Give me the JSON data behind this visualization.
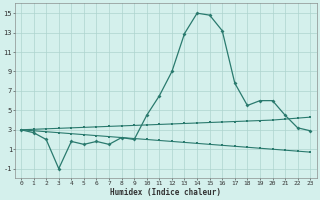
{
  "xlabel": "Humidex (Indice chaleur)",
  "x": [
    0,
    1,
    2,
    3,
    4,
    5,
    6,
    7,
    8,
    9,
    10,
    11,
    12,
    13,
    14,
    15,
    16,
    17,
    18,
    19,
    20,
    21,
    22,
    23
  ],
  "y_main": [
    3,
    2.7,
    2.0,
    -1.0,
    1.8,
    1.5,
    1.8,
    1.5,
    2.2,
    2.0,
    4.5,
    6.5,
    9.0,
    12.9,
    15.0,
    14.8,
    13.2,
    7.8,
    5.5,
    6.0,
    6.0,
    4.5,
    3.2,
    2.9
  ],
  "y_upper": [
    3.0,
    3.05,
    3.1,
    3.15,
    3.2,
    3.25,
    3.3,
    3.35,
    3.4,
    3.45,
    3.5,
    3.55,
    3.6,
    3.65,
    3.7,
    3.75,
    3.8,
    3.85,
    3.9,
    3.95,
    4.0,
    4.1,
    4.2,
    4.3
  ],
  "y_lower": [
    3.0,
    2.9,
    2.8,
    2.7,
    2.6,
    2.5,
    2.4,
    2.3,
    2.2,
    2.1,
    2.0,
    1.9,
    1.8,
    1.7,
    1.6,
    1.5,
    1.4,
    1.3,
    1.2,
    1.1,
    1.0,
    0.9,
    0.8,
    0.7
  ],
  "line_color": "#2a7a6e",
  "bg_color": "#d4f0ec",
  "grid_color": "#aed4ce",
  "ylim": [
    -2,
    16
  ],
  "xlim": [
    -0.5,
    23.5
  ],
  "yticks": [
    -1,
    1,
    3,
    5,
    7,
    9,
    11,
    13,
    15
  ],
  "xticks": [
    0,
    1,
    2,
    3,
    4,
    5,
    6,
    7,
    8,
    9,
    10,
    11,
    12,
    13,
    14,
    15,
    16,
    17,
    18,
    19,
    20,
    21,
    22,
    23
  ]
}
